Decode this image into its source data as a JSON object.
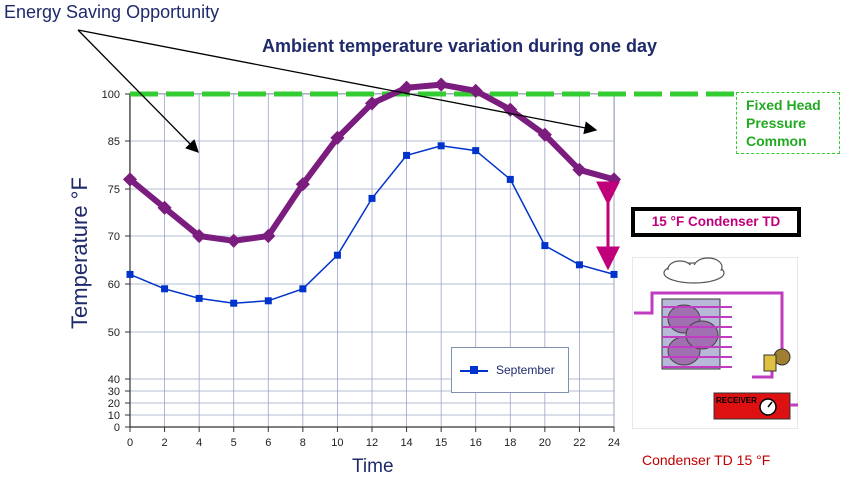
{
  "annotation_top": "Energy Saving Opportunity",
  "fixed_head_box": [
    "Fixed Head",
    "Pressure",
    "Common"
  ],
  "condenser_td_box": "15 °F Condenser TD",
  "condenser_caption": "Condenser TD 15 °F",
  "receiver_label": "RECEIVER",
  "colors": {
    "ambient": "#0033cc",
    "condensing": "#7a1d7e",
    "fixed_head": "#33cc33",
    "savings_fill": "#fbe3d4",
    "arrow": "#c0007a",
    "title": "#1f2a6b"
  },
  "chart_data": {
    "type": "line",
    "title": "Ambient temperature variation during one day",
    "xlabel": "Time",
    "ylabel": "Temperature °F",
    "categories": [
      "0",
      "2",
      "4",
      "5",
      "6",
      "8",
      "10",
      "12",
      "14",
      "15",
      "16",
      "18",
      "20",
      "22",
      "24"
    ],
    "y_ticks": [
      "0",
      "10",
      "20",
      "30",
      "40",
      "50",
      "60",
      "70",
      "75",
      "85",
      "100"
    ],
    "y_tick_values": [
      0,
      10,
      20,
      30,
      40,
      50,
      60,
      70,
      75,
      85,
      100
    ],
    "ylim": [
      0,
      100
    ],
    "series": [
      {
        "name": "September",
        "values": [
          62,
          59,
          57,
          56,
          56.5,
          59,
          66,
          74,
          82,
          84,
          83,
          77,
          68,
          64,
          62
        ]
      },
      {
        "values": [
          77,
          73,
          70,
          69,
          70,
          76,
          86,
          97,
          102,
          103,
          101,
          95,
          87,
          79,
          77
        ]
      },
      {
        "values": [
          100,
          100,
          100,
          100,
          100,
          100,
          100,
          100,
          100,
          100,
          100,
          100,
          100,
          100,
          100
        ]
      }
    ],
    "legend": {
      "position": "bottom-right",
      "entries": [
        "September"
      ]
    },
    "grid": true
  }
}
